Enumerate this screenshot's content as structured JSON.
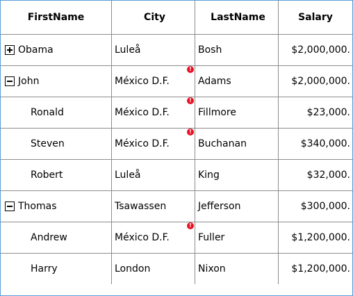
{
  "columns": [
    "FirstName",
    "City",
    "LastName",
    "Salary"
  ],
  "rows": [
    {
      "toggle": "expand",
      "indent": false,
      "first": "Obama",
      "city": "Luleå",
      "last": "Bosh",
      "salary": "$2,000,000.",
      "error": false
    },
    {
      "toggle": "collapse",
      "indent": false,
      "first": "John",
      "city": "México D.F.",
      "last": "Adams",
      "salary": "$2,000,000.",
      "error": true
    },
    {
      "toggle": "none",
      "indent": true,
      "first": "Ronald",
      "city": "México D.F.",
      "last": "Fillmore",
      "salary": "$23,000.",
      "error": true
    },
    {
      "toggle": "none",
      "indent": true,
      "first": "Steven",
      "city": "México D.F.",
      "last": "Buchanan",
      "salary": "$340,000.",
      "error": true
    },
    {
      "toggle": "none",
      "indent": true,
      "first": "Robert",
      "city": "Luleå",
      "last": "King",
      "salary": "$32,000.",
      "error": false
    },
    {
      "toggle": "collapse",
      "indent": false,
      "first": "Thomas",
      "city": "Tsawassen",
      "last": "Jefferson",
      "salary": "$300,000.",
      "error": false
    },
    {
      "toggle": "none",
      "indent": true,
      "first": "Andrew",
      "city": "México D.F.",
      "last": "Fuller",
      "salary": "$1,200,000.",
      "error": true
    },
    {
      "toggle": "none",
      "indent": true,
      "first": "Harry",
      "city": "London",
      "last": "Nixon",
      "salary": "$1,200,000.",
      "error": false
    }
  ],
  "error_icon_glyph": "!",
  "colors": {
    "border_accent": "#5b9bd5",
    "error_badge": "#e81123",
    "grid_line": "#8c8c8c"
  }
}
